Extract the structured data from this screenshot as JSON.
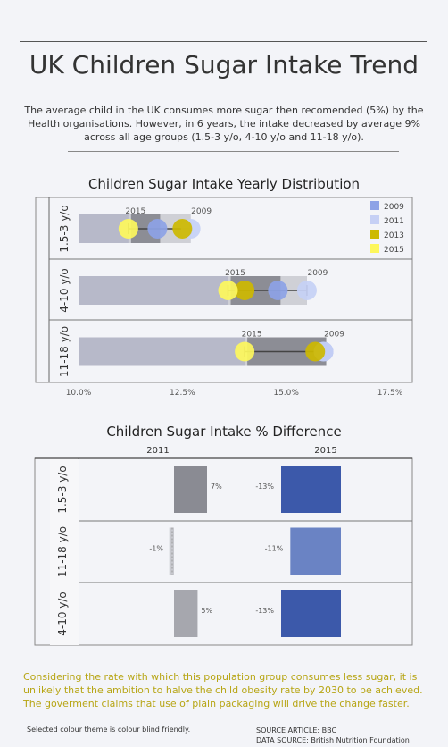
{
  "header": {
    "title": "UK Children Sugar Intake Trend",
    "intro": "The average child in the UK consumes more sugar then recomended (5%) by the Health organisations.  However, in 6 years, the intake decreased by average 9% across all age groups (1.5-3 y/o, 4-10 y/o and 11-18 y/o)."
  },
  "colors": {
    "y2009": "#8da2e6",
    "y2011": "#c6d0f5",
    "y2013": "#cdb900",
    "y2015": "#fdf75c"
  },
  "chart_data": [
    {
      "type": "scatter",
      "title": "Children Sugar Intake Yearly Distribution",
      "x_ticks": [
        "10.0%",
        "12.5%",
        "15.0%",
        "17.5%"
      ],
      "xlim": [
        10.0,
        17.5
      ],
      "legend": {
        "position": "top-right",
        "items": [
          "2009",
          "2011",
          "2013",
          "2015"
        ]
      },
      "categories": [
        "1.5-3 y/o",
        "4-10 y/o",
        "11-18 y/o"
      ],
      "series": [
        {
          "name": "2009",
          "values": [
            11.9,
            14.8,
            15.9
          ]
        },
        {
          "name": "2011",
          "values": [
            12.7,
            15.5,
            15.9
          ]
        },
        {
          "name": "2013",
          "values": [
            12.5,
            14.0,
            15.7
          ]
        },
        {
          "name": "2015",
          "values": [
            11.2,
            13.6,
            14.0
          ]
        }
      ],
      "labels": [
        {
          "category": "1.5-3 y/o",
          "left": "2015",
          "right": "2009"
        },
        {
          "category": "4-10 y/o",
          "left": "2015",
          "right": "2009"
        },
        {
          "category": "11-18 y/o",
          "left": "2015",
          "right": "2009"
        }
      ]
    },
    {
      "type": "bar",
      "title": "Children Sugar Intake % Difference",
      "column_headers": [
        "2011",
        "2015"
      ],
      "categories": [
        "1.5-3 y/o",
        "11-18 y/o",
        "4-10 y/o"
      ],
      "series": [
        {
          "name": "2011",
          "values": [
            7,
            -1,
            5
          ],
          "labels": [
            "7%",
            "-1%",
            "5%"
          ]
        },
        {
          "name": "2015",
          "values": [
            -13,
            -11,
            -13
          ],
          "labels": [
            "-13%",
            "-11%",
            "-13%"
          ]
        }
      ]
    }
  ],
  "footer": {
    "conclusion": "Considering the rate with which this population group consumes less sugar, it is unlikely that the ambition to halve the child obesity rate by 2030 to be achieved. The goverment claims that use of plain packaging will drive the change faster.",
    "colour_note": "Selected colour theme is colour blind friendly.",
    "source_article": "SOURCE ARTICLE: BBC",
    "data_source": "DATA SOURCE: British Nutrition Foundation"
  }
}
